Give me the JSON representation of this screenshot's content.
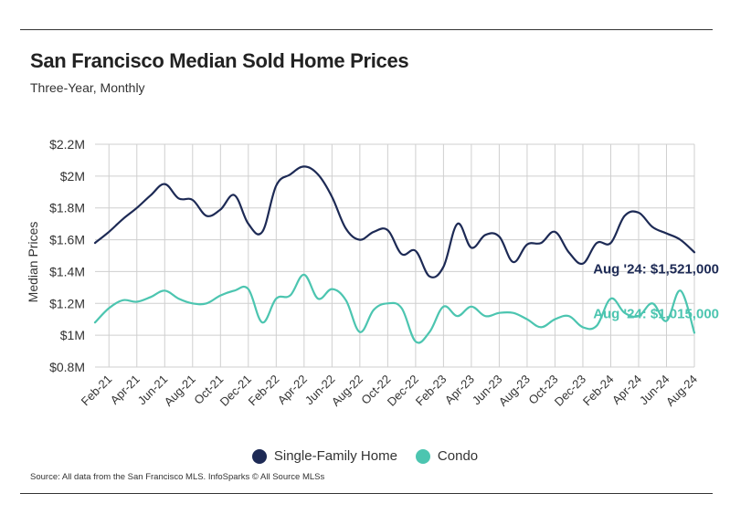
{
  "header": {
    "title": "San Francisco Median Sold Home Prices",
    "subtitle": "Three-Year, Monthly"
  },
  "footer": {
    "source": "Source:  All data from the San Francisco MLS. InfoSparks © All Source MLSs"
  },
  "colors": {
    "single_family": "#1d2a55",
    "condo": "#4cc5b0",
    "grid": "#cfcfcf"
  },
  "chart_data": {
    "type": "line",
    "title": "San Francisco Median Sold Home Prices",
    "subtitle": "Three-Year, Monthly",
    "xlabel": "",
    "ylabel": "Median Prices",
    "ylim": [
      800000,
      2200000
    ],
    "yticks": [
      800000,
      1000000,
      1200000,
      1400000,
      1600000,
      1800000,
      2000000,
      2200000
    ],
    "ytick_labels": [
      "$0.8M",
      "$1M",
      "$1.2M",
      "$1.4M",
      "$1.6M",
      "$1.8M",
      "$2M",
      "$2.2M"
    ],
    "x": [
      "Jan-21",
      "Feb-21",
      "Mar-21",
      "Apr-21",
      "May-21",
      "Jun-21",
      "Jul-21",
      "Aug-21",
      "Sep-21",
      "Oct-21",
      "Nov-21",
      "Dec-21",
      "Jan-22",
      "Feb-22",
      "Mar-22",
      "Apr-22",
      "May-22",
      "Jun-22",
      "Jul-22",
      "Aug-22",
      "Sep-22",
      "Oct-22",
      "Nov-22",
      "Dec-22",
      "Jan-23",
      "Feb-23",
      "Mar-23",
      "Apr-23",
      "May-23",
      "Jun-23",
      "Jul-23",
      "Aug-23",
      "Sep-23",
      "Oct-23",
      "Nov-23",
      "Dec-23",
      "Jan-24",
      "Feb-24",
      "Mar-24",
      "Apr-24",
      "May-24",
      "Jun-24",
      "Jul-24",
      "Aug-24"
    ],
    "xtick_labels": [
      "Feb-21",
      "Apr-21",
      "Jun-21",
      "Aug-21",
      "Oct-21",
      "Dec-21",
      "Feb-22",
      "Apr-22",
      "Jun-22",
      "Aug-22",
      "Oct-22",
      "Dec-22",
      "Feb-23",
      "Apr-23",
      "Jun-23",
      "Aug-23",
      "Oct-23",
      "Dec-23",
      "Feb-24",
      "Apr-24",
      "Jun-24",
      "Aug-24"
    ],
    "grid": true,
    "legend": "bottom-center",
    "series": [
      {
        "name": "Single-Family Home",
        "values": [
          1580000,
          1650000,
          1730000,
          1800000,
          1880000,
          1950000,
          1860000,
          1850000,
          1750000,
          1790000,
          1880000,
          1700000,
          1650000,
          1940000,
          2010000,
          2060000,
          2010000,
          1870000,
          1670000,
          1600000,
          1650000,
          1660000,
          1510000,
          1530000,
          1370000,
          1430000,
          1700000,
          1550000,
          1630000,
          1620000,
          1460000,
          1570000,
          1580000,
          1650000,
          1520000,
          1450000,
          1580000,
          1580000,
          1750000,
          1770000,
          1680000,
          1640000,
          1600000,
          1521000
        ],
        "end_label": "Aug '24: $1,521,000"
      },
      {
        "name": "Condo",
        "values": [
          1080000,
          1170000,
          1220000,
          1210000,
          1240000,
          1280000,
          1230000,
          1200000,
          1200000,
          1250000,
          1280000,
          1290000,
          1080000,
          1230000,
          1250000,
          1380000,
          1230000,
          1290000,
          1220000,
          1020000,
          1160000,
          1200000,
          1170000,
          960000,
          1020000,
          1180000,
          1120000,
          1180000,
          1120000,
          1140000,
          1140000,
          1100000,
          1050000,
          1100000,
          1120000,
          1050000,
          1060000,
          1230000,
          1140000,
          1120000,
          1200000,
          1090000,
          1280000,
          1015000
        ],
        "end_label": "Aug '24: $1,015,000"
      }
    ]
  }
}
